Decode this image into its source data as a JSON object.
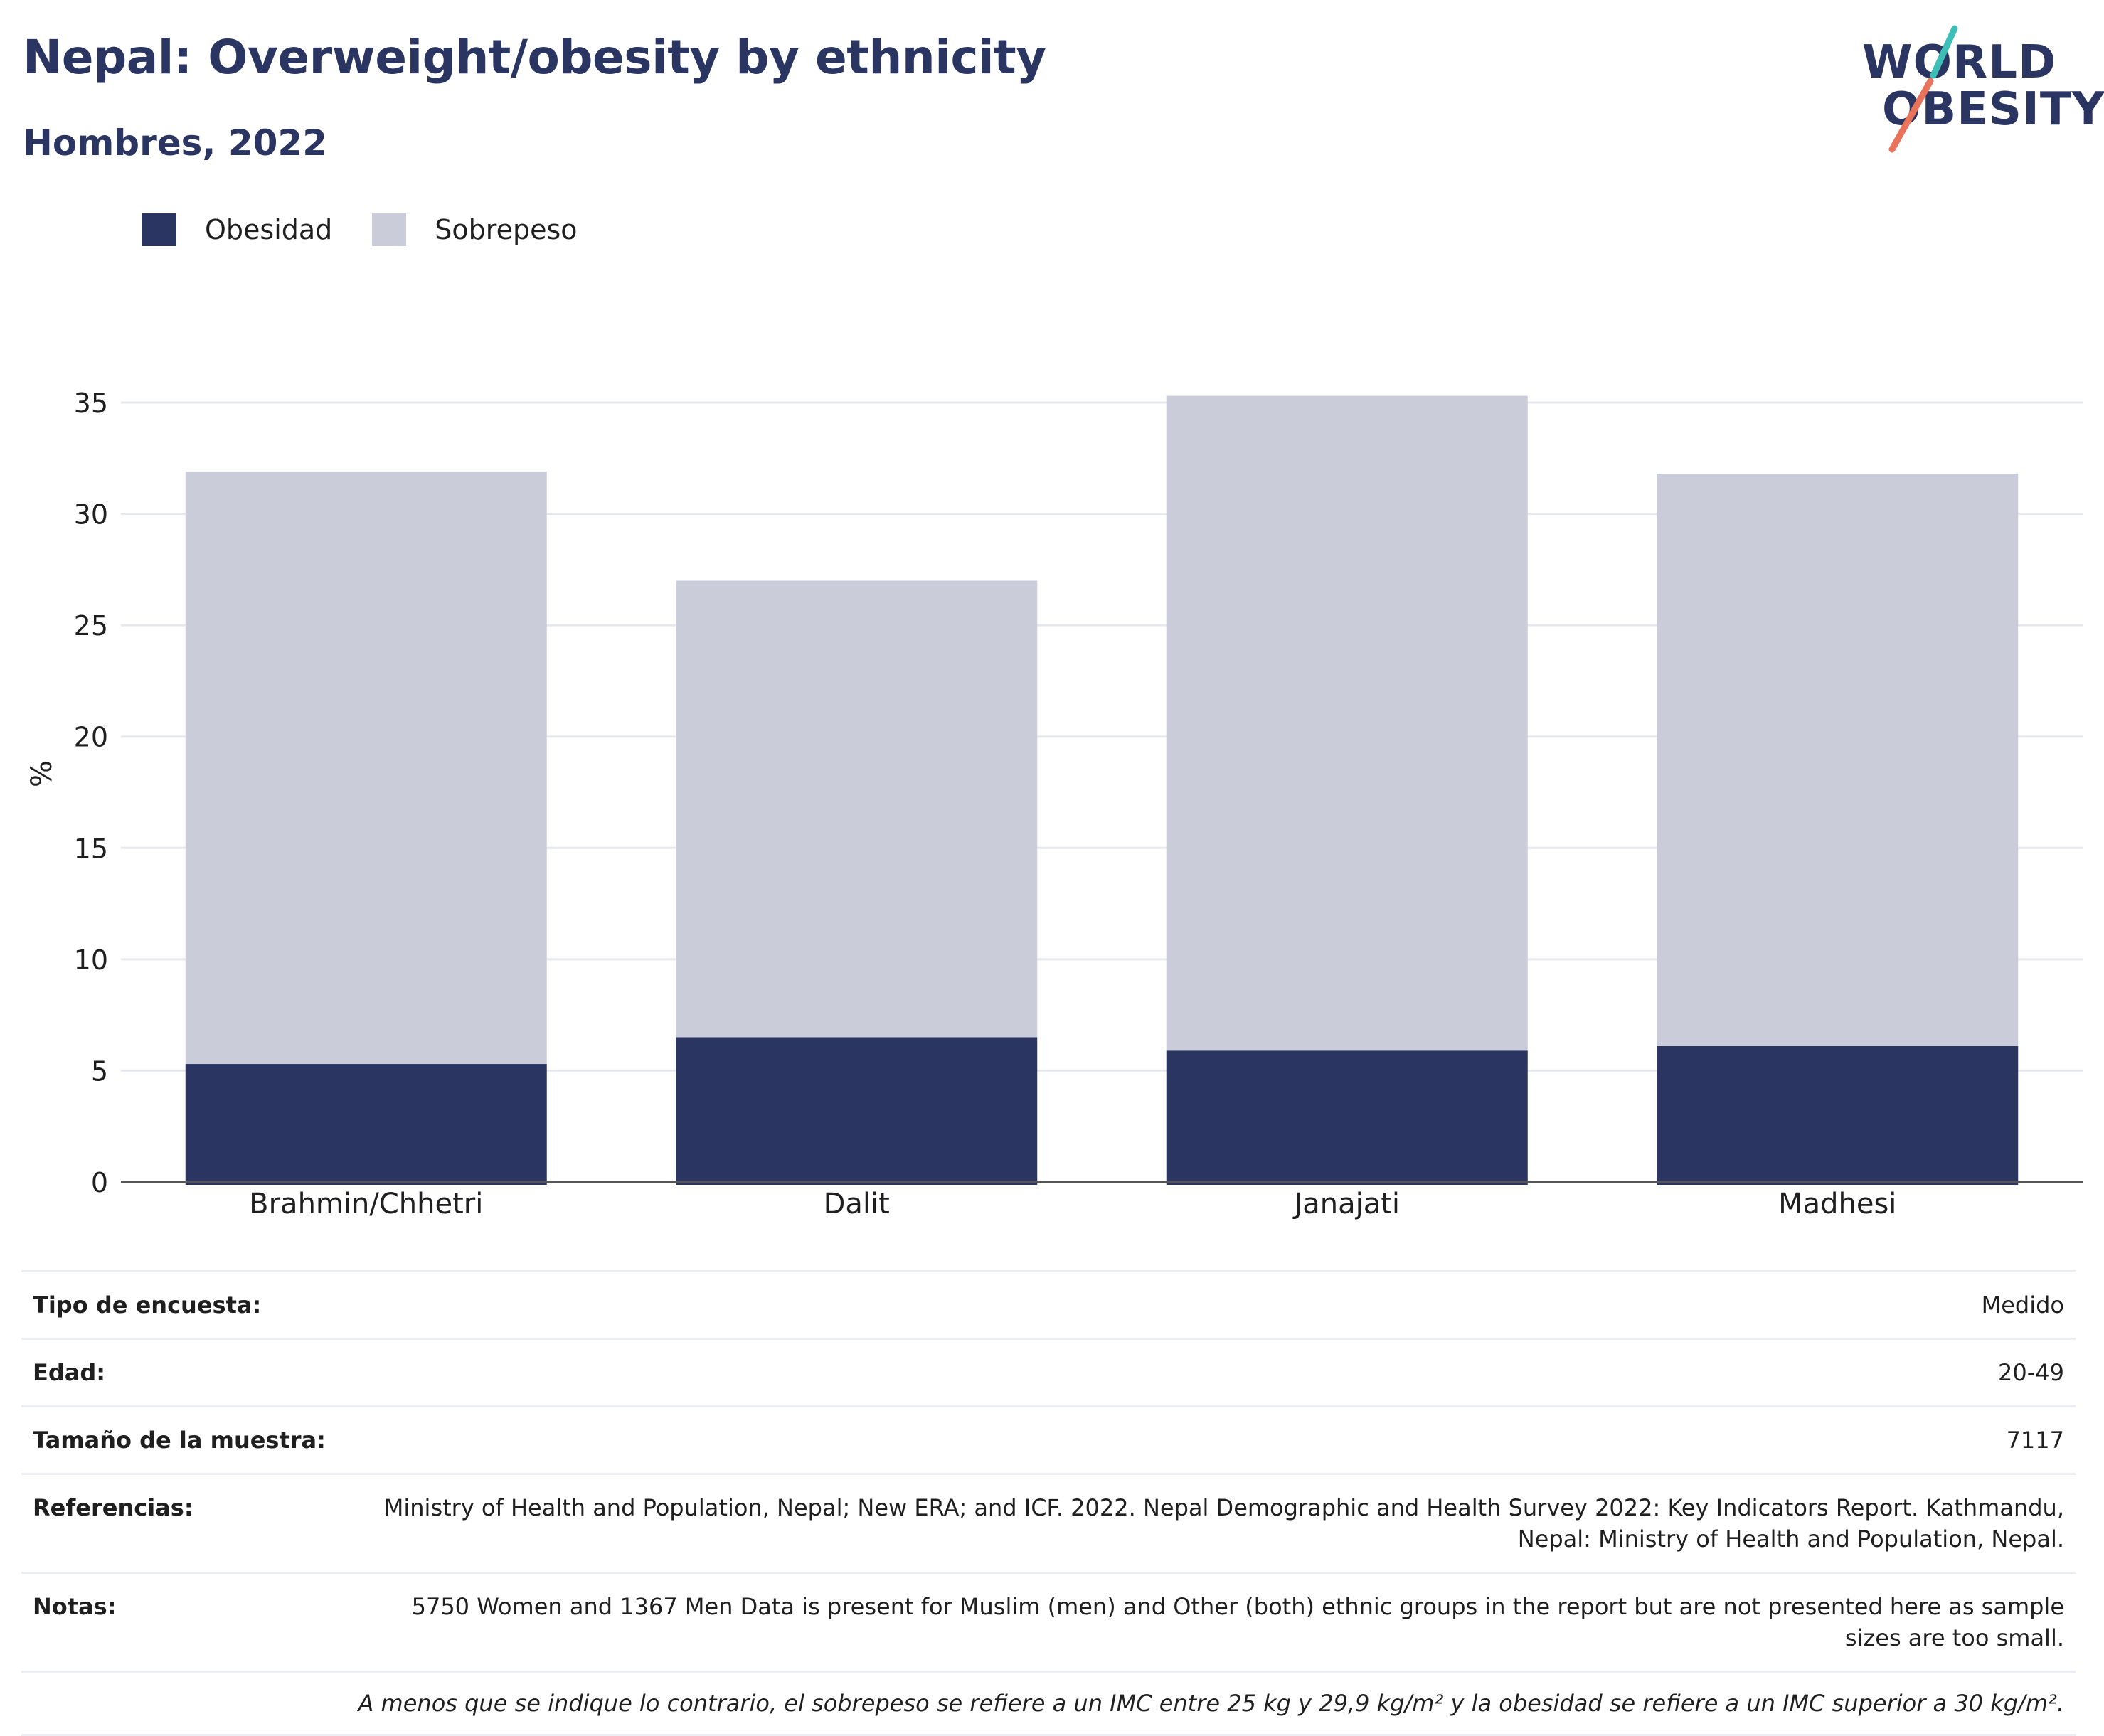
{
  "header": {
    "title": "Nepal: Overweight/obesity by ethnicity",
    "subtitle": "Hombres, 2022"
  },
  "logo": {
    "line1": "WORLD",
    "line2": "OBESITY",
    "slash_colors": [
      "#3dbfb8",
      "#e8735a"
    ]
  },
  "colors": {
    "obesity": "#2a3561",
    "overweight": "#cacdd9",
    "grid": "#e6e8ee",
    "axis": "#555555"
  },
  "legend": {
    "obesity_label": "Obesidad",
    "overweight_label": "Sobrepeso"
  },
  "chart_data": {
    "type": "bar",
    "stacked": true,
    "categories": [
      "Brahmin/Chhetri",
      "Dalit",
      "Janajati",
      "Madhesi"
    ],
    "series": [
      {
        "name": "Obesidad",
        "values": [
          5.3,
          6.5,
          5.9,
          6.1
        ]
      },
      {
        "name": "Sobrepeso",
        "values": [
          26.6,
          20.5,
          29.4,
          25.7
        ]
      }
    ],
    "ylabel": "%",
    "ylim": [
      0,
      36
    ],
    "yticks": [
      0,
      5,
      10,
      15,
      20,
      25,
      30,
      35
    ],
    "grid": true,
    "legend_position": "top-left"
  },
  "info": {
    "rows": [
      {
        "key": "Tipo de encuesta:",
        "value": "Medido"
      },
      {
        "key": "Edad:",
        "value": "20-49"
      },
      {
        "key": "Tamaño de la muestra:",
        "value": "7117"
      },
      {
        "key": "Referencias:",
        "value": "Ministry of Health and Population, Nepal; New ERA; and ICF. 2022. Nepal Demographic and Health Survey 2022: Key Indicators Report. Kathmandu, Nepal: Ministry of Health and Population, Nepal."
      },
      {
        "key": "Notas:",
        "value": "5750 Women and 1367 Men Data is present for Muslim (men) and Other (both) ethnic groups in the report but are not presented here as sample sizes are too small."
      }
    ],
    "footnote": "A menos que se indique lo contrario, el sobrepeso se refiere a un IMC entre 25 kg y 29,9 kg/m² y la obesidad se refiere a un IMC superior a 30 kg/m²."
  }
}
